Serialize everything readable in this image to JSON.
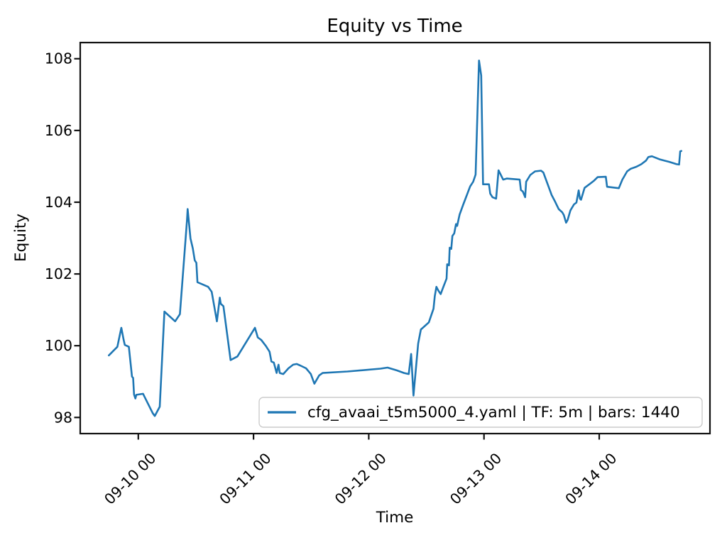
{
  "colors": {
    "background": "#ffffff",
    "line": "#1f77b4",
    "axis": "#111111",
    "legend_border": "#cccccc",
    "text": "#000000"
  },
  "chart_data": {
    "type": "line",
    "title": "Equity vs Time",
    "xlabel": "Time",
    "ylabel": "Equity",
    "grid": false,
    "x_tick_labels": [
      "09-10 00",
      "09-11 00",
      "09-12 00",
      "09-13 00",
      "09-14 00"
    ],
    "x_tick_positions_days": [
      0,
      1,
      2,
      3,
      4
    ],
    "y_ticks": [
      "98",
      "100",
      "102",
      "104",
      "106",
      "108"
    ],
    "y_tick_values": [
      98,
      100,
      102,
      104,
      106,
      108
    ],
    "xlim_days": [
      -0.504,
      4.961
    ],
    "ylim": [
      97.55,
      108.45
    ],
    "legend": {
      "position": "lower right",
      "label": "cfg_avaai_t5m5000_4.yaml | TF: 5m | bars: 1440",
      "border_color": "#cccccc"
    },
    "series": [
      {
        "name": "cfg_avaai_t5m5000_4.yaml | TF: 5m | bars: 1440",
        "color": "#1f77b4",
        "points": [
          [
            -0.256,
            99.73
          ],
          [
            -0.182,
            99.97
          ],
          [
            -0.147,
            100.5
          ],
          [
            -0.127,
            100.16
          ],
          [
            -0.117,
            100.02
          ],
          [
            -0.082,
            99.97
          ],
          [
            -0.055,
            99.14
          ],
          [
            -0.045,
            99.1
          ],
          [
            -0.037,
            98.64
          ],
          [
            -0.025,
            98.53
          ],
          [
            -0.017,
            98.63
          ],
          [
            0.041,
            98.66
          ],
          [
            0.125,
            98.12
          ],
          [
            0.143,
            98.04
          ],
          [
            0.186,
            98.3
          ],
          [
            0.227,
            100.95
          ],
          [
            0.32,
            100.68
          ],
          [
            0.361,
            100.88
          ],
          [
            0.422,
            103.47
          ],
          [
            0.428,
            103.81
          ],
          [
            0.453,
            102.99
          ],
          [
            0.473,
            102.71
          ],
          [
            0.49,
            102.38
          ],
          [
            0.504,
            102.31
          ],
          [
            0.513,
            101.77
          ],
          [
            0.606,
            101.64
          ],
          [
            0.637,
            101.5
          ],
          [
            0.682,
            100.68
          ],
          [
            0.707,
            101.34
          ],
          [
            0.715,
            101.17
          ],
          [
            0.739,
            101.1
          ],
          [
            0.801,
            99.6
          ],
          [
            0.86,
            99.7
          ],
          [
            1.012,
            100.5
          ],
          [
            1.037,
            100.23
          ],
          [
            1.067,
            100.16
          ],
          [
            1.108,
            99.99
          ],
          [
            1.139,
            99.83
          ],
          [
            1.155,
            99.56
          ],
          [
            1.176,
            99.53
          ],
          [
            1.2,
            99.24
          ],
          [
            1.217,
            99.47
          ],
          [
            1.227,
            99.24
          ],
          [
            1.258,
            99.21
          ],
          [
            1.303,
            99.37
          ],
          [
            1.344,
            99.47
          ],
          [
            1.375,
            99.49
          ],
          [
            1.405,
            99.45
          ],
          [
            1.456,
            99.37
          ],
          [
            1.497,
            99.21
          ],
          [
            1.528,
            98.94
          ],
          [
            1.569,
            99.17
          ],
          [
            1.6,
            99.24
          ],
          [
            1.815,
            99.28
          ],
          [
            2.101,
            99.36
          ],
          [
            2.163,
            99.39
          ],
          [
            2.245,
            99.31
          ],
          [
            2.306,
            99.24
          ],
          [
            2.347,
            99.21
          ],
          [
            2.368,
            99.77
          ],
          [
            2.388,
            98.61
          ],
          [
            2.429,
            100.06
          ],
          [
            2.452,
            100.45
          ],
          [
            2.521,
            100.65
          ],
          [
            2.562,
            101.03
          ],
          [
            2.573,
            101.38
          ],
          [
            2.587,
            101.64
          ],
          [
            2.603,
            101.54
          ],
          [
            2.624,
            101.44
          ],
          [
            2.644,
            101.61
          ],
          [
            2.675,
            101.87
          ],
          [
            2.681,
            102.27
          ],
          [
            2.696,
            102.24
          ],
          [
            2.702,
            102.73
          ],
          [
            2.716,
            102.7
          ],
          [
            2.726,
            103.06
          ],
          [
            2.742,
            103.13
          ],
          [
            2.757,
            103.39
          ],
          [
            2.767,
            103.34
          ],
          [
            2.788,
            103.65
          ],
          [
            2.818,
            103.92
          ],
          [
            2.849,
            104.18
          ],
          [
            2.88,
            104.44
          ],
          [
            2.906,
            104.57
          ],
          [
            2.927,
            104.77
          ],
          [
            2.957,
            107.95
          ],
          [
            2.976,
            107.53
          ],
          [
            2.992,
            104.5
          ],
          [
            3.043,
            104.5
          ],
          [
            3.054,
            104.24
          ],
          [
            3.074,
            104.14
          ],
          [
            3.105,
            104.1
          ],
          [
            3.126,
            104.89
          ],
          [
            3.166,
            104.63
          ],
          [
            3.197,
            104.66
          ],
          [
            3.31,
            104.63
          ],
          [
            3.32,
            104.34
          ],
          [
            3.337,
            104.3
          ],
          [
            3.357,
            104.14
          ],
          [
            3.366,
            104.57
          ],
          [
            3.402,
            104.76
          ],
          [
            3.443,
            104.86
          ],
          [
            3.495,
            104.88
          ],
          [
            3.515,
            104.83
          ],
          [
            3.556,
            104.47
          ],
          [
            3.587,
            104.2
          ],
          [
            3.618,
            104.01
          ],
          [
            3.648,
            103.81
          ],
          [
            3.679,
            103.72
          ],
          [
            3.693,
            103.64
          ],
          [
            3.705,
            103.51
          ],
          [
            3.713,
            103.43
          ],
          [
            3.726,
            103.51
          ],
          [
            3.75,
            103.77
          ],
          [
            3.781,
            103.94
          ],
          [
            3.802,
            103.99
          ],
          [
            3.822,
            104.33
          ],
          [
            3.833,
            104.1
          ],
          [
            3.842,
            104.07
          ],
          [
            3.873,
            104.4
          ],
          [
            3.914,
            104.5
          ],
          [
            3.955,
            104.6
          ],
          [
            3.986,
            104.7
          ],
          [
            4.057,
            104.71
          ],
          [
            4.068,
            104.43
          ],
          [
            4.17,
            104.39
          ],
          [
            4.201,
            104.63
          ],
          [
            4.242,
            104.86
          ],
          [
            4.272,
            104.93
          ],
          [
            4.324,
            104.99
          ],
          [
            4.365,
            105.06
          ],
          [
            4.406,
            105.16
          ],
          [
            4.426,
            105.26
          ],
          [
            4.457,
            105.28
          ],
          [
            4.529,
            105.19
          ],
          [
            4.611,
            105.12
          ],
          [
            4.672,
            105.06
          ],
          [
            4.693,
            105.05
          ],
          [
            4.703,
            105.42
          ],
          [
            4.713,
            105.43
          ]
        ]
      }
    ]
  }
}
